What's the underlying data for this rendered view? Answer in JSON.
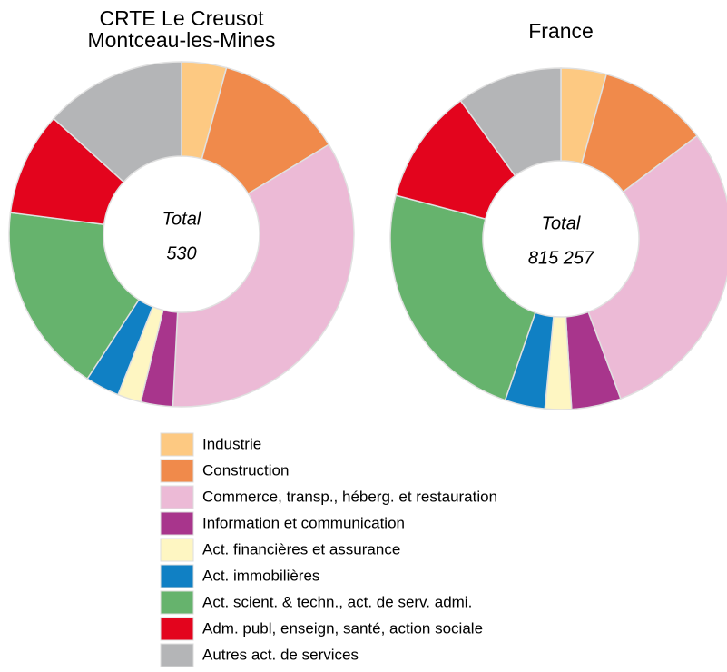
{
  "chart_data": [
    {
      "type": "pie",
      "title": [
        "CRTE Le Creusot",
        "Montceau-les-Mines"
      ],
      "center_text": [
        "Total",
        "530"
      ],
      "values": [
        4.2,
        12.1,
        34.5,
        3.0,
        2.2,
        3.2,
        17.8,
        9.7,
        13.3
      ]
    },
    {
      "type": "pie",
      "title": [
        "France"
      ],
      "center_text": [
        "Total",
        "815 257"
      ],
      "values": [
        4.3,
        10.4,
        29.6,
        4.7,
        2.5,
        3.8,
        23.8,
        10.9,
        10.0
      ]
    }
  ],
  "legend": {
    "categories": [
      "Industrie",
      "Construction",
      "Commerce, transp., héberg. et restauration",
      "Information et communication",
      "Act. financières et assurance",
      "Act. immobilières",
      "Act. scient. & techn., act. de serv. admi.",
      "Adm. publ, enseign, santé, action sociale",
      "Autres act. de services"
    ],
    "colors": [
      "#fdc982",
      "#f08a4b",
      "#ecbad6",
      "#a8358c",
      "#fef6c2",
      "#1080c4",
      "#66b36d",
      "#e3041d",
      "#b4b5b7"
    ]
  }
}
